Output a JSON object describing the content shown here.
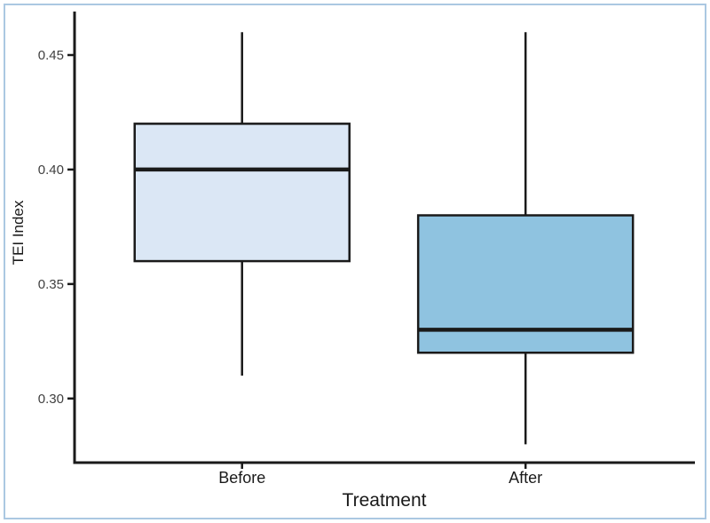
{
  "chart_data": {
    "type": "boxplot",
    "title": "",
    "xlabel": "Treatment",
    "ylabel": "TEI Index",
    "categories": [
      "Before",
      "After"
    ],
    "series": [
      {
        "name": "Before",
        "whisker_low": 0.31,
        "q1": 0.36,
        "median": 0.4,
        "q3": 0.42,
        "whisker_high": 0.46,
        "fill": "#dbe7f5"
      },
      {
        "name": "After",
        "whisker_low": 0.28,
        "q1": 0.32,
        "median": 0.33,
        "q3": 0.38,
        "whisker_high": 0.46,
        "fill": "#8fc3e0"
      }
    ],
    "yticks": [
      0.45,
      0.4,
      0.35,
      0.3
    ],
    "ytick_labels": [
      "0.45",
      "0.40",
      "0.35",
      "0.30"
    ],
    "ylim": [
      0.272,
      0.469
    ],
    "grid": false,
    "legend": false,
    "whisker_caps": false,
    "outliers": [],
    "colors": {
      "stroke": "#1a1a1a",
      "tick_label": "#404040",
      "figure_border": "#abc8e2",
      "background": "#ffffff"
    }
  }
}
